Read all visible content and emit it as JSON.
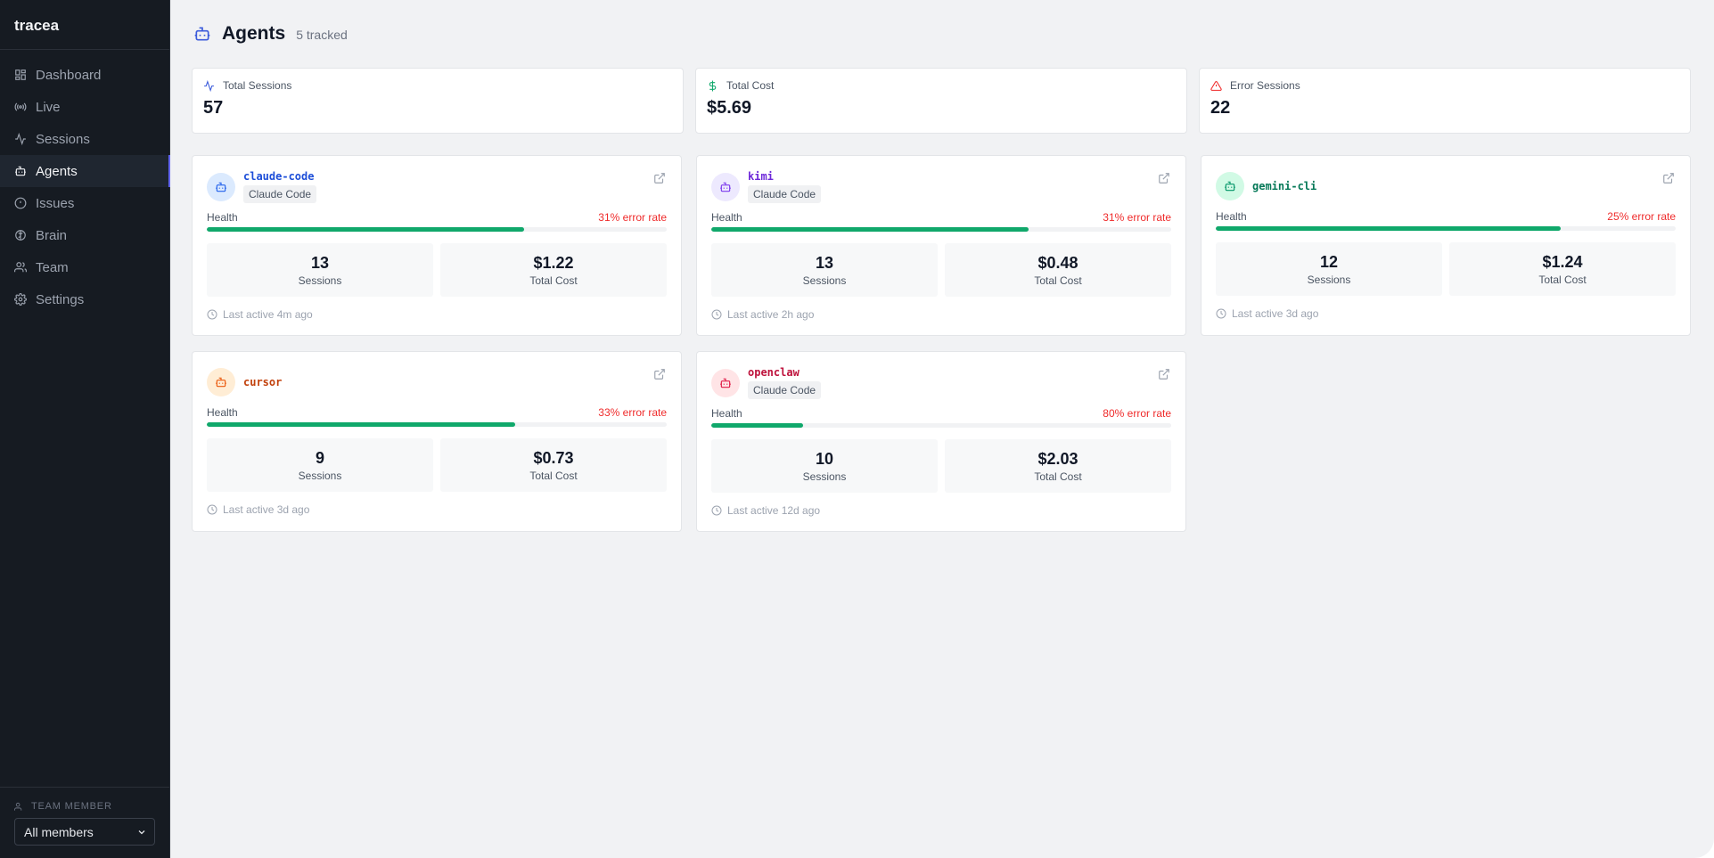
{
  "app": {
    "brand": "tracea"
  },
  "sidebar": {
    "items": [
      {
        "label": "Dashboard",
        "icon": "dashboard-icon",
        "active": false
      },
      {
        "label": "Live",
        "icon": "radio-icon",
        "active": false
      },
      {
        "label": "Sessions",
        "icon": "activity-icon",
        "active": false
      },
      {
        "label": "Agents",
        "icon": "bot-icon",
        "active": true
      },
      {
        "label": "Issues",
        "icon": "alert-circle-icon",
        "active": false
      },
      {
        "label": "Brain",
        "icon": "brain-icon",
        "active": false
      },
      {
        "label": "Team",
        "icon": "users-icon",
        "active": false
      },
      {
        "label": "Settings",
        "icon": "gear-icon",
        "active": false
      }
    ],
    "footer": {
      "label": "TEAM MEMBER",
      "select_value": "All members"
    }
  },
  "header": {
    "title": "Agents",
    "subtitle": "5 tracked"
  },
  "stats": [
    {
      "label": "Total Sessions",
      "value": "57",
      "icon": "activity-icon",
      "color": "#3b5bdb"
    },
    {
      "label": "Total Cost",
      "value": "$5.69",
      "icon": "dollar-icon",
      "color": "#10a86b"
    },
    {
      "label": "Error Sessions",
      "value": "22",
      "icon": "warning-icon",
      "color": "#ef2b2b"
    }
  ],
  "agents": [
    {
      "name": "claude-code",
      "tag": "Claude Code",
      "health_label": "Health",
      "error_rate": "31% error rate",
      "health": 0.69,
      "sessions": "13",
      "sessions_label": "Sessions",
      "cost": "$1.22",
      "cost_label": "Total Cost",
      "last_active": "Last active 4m ago",
      "name_color": "#1d4ed8",
      "avatar_bg": "#dbeafe",
      "avatar_fg": "#2563eb"
    },
    {
      "name": "kimi",
      "tag": "Claude Code",
      "health_label": "Health",
      "error_rate": "31% error rate",
      "health": 0.69,
      "sessions": "13",
      "sessions_label": "Sessions",
      "cost": "$0.48",
      "cost_label": "Total Cost",
      "last_active": "Last active 2h ago",
      "name_color": "#6d28d9",
      "avatar_bg": "#ede9fe",
      "avatar_fg": "#7c3aed"
    },
    {
      "name": "gemini-cli",
      "tag": "",
      "health_label": "Health",
      "error_rate": "25% error rate",
      "health": 0.75,
      "sessions": "12",
      "sessions_label": "Sessions",
      "cost": "$1.24",
      "cost_label": "Total Cost",
      "last_active": "Last active 3d ago",
      "name_color": "#047857",
      "avatar_bg": "#d1fae5",
      "avatar_fg": "#059669"
    },
    {
      "name": "cursor",
      "tag": "",
      "health_label": "Health",
      "error_rate": "33% error rate",
      "health": 0.67,
      "sessions": "9",
      "sessions_label": "Sessions",
      "cost": "$0.73",
      "cost_label": "Total Cost",
      "last_active": "Last active 3d ago",
      "name_color": "#c2410c",
      "avatar_bg": "#ffedd5",
      "avatar_fg": "#ea580c"
    },
    {
      "name": "openclaw",
      "tag": "Claude Code",
      "health_label": "Health",
      "error_rate": "80% error rate",
      "health": 0.2,
      "sessions": "10",
      "sessions_label": "Sessions",
      "cost": "$2.03",
      "cost_label": "Total Cost",
      "last_active": "Last active 12d ago",
      "name_color": "#be123c",
      "avatar_bg": "#ffe4e6",
      "avatar_fg": "#e11d48"
    }
  ]
}
